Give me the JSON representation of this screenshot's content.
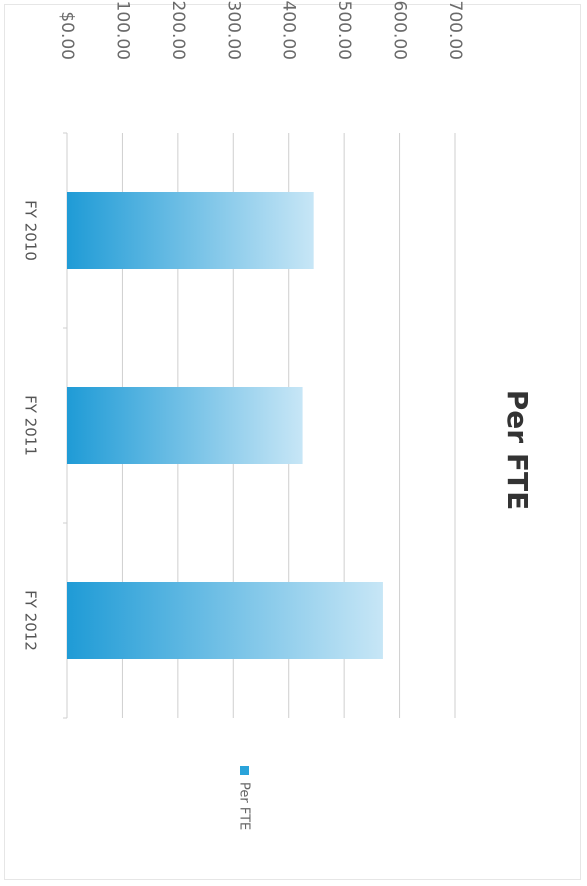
{
  "chart_data": {
    "type": "bar",
    "orientation": "rotated-clockwise",
    "title": "Per FTE",
    "categories": [
      "FY 2010",
      "FY 2011",
      "FY 2012"
    ],
    "series": [
      {
        "name": "Per FTE",
        "values": [
          445,
          425,
          570
        ]
      }
    ],
    "ylim": [
      0,
      700
    ],
    "y_ticks": [
      "$0.00",
      "$100.00",
      "$200.00",
      "$300.00",
      "$400.00",
      "$500.00",
      "$600.00",
      "$700.00"
    ],
    "grid": true,
    "legend_position": "right",
    "colors": {
      "bar": "#2aa3da",
      "bar_light": "#bfe1f3",
      "grid": "#cfcfcf"
    }
  }
}
